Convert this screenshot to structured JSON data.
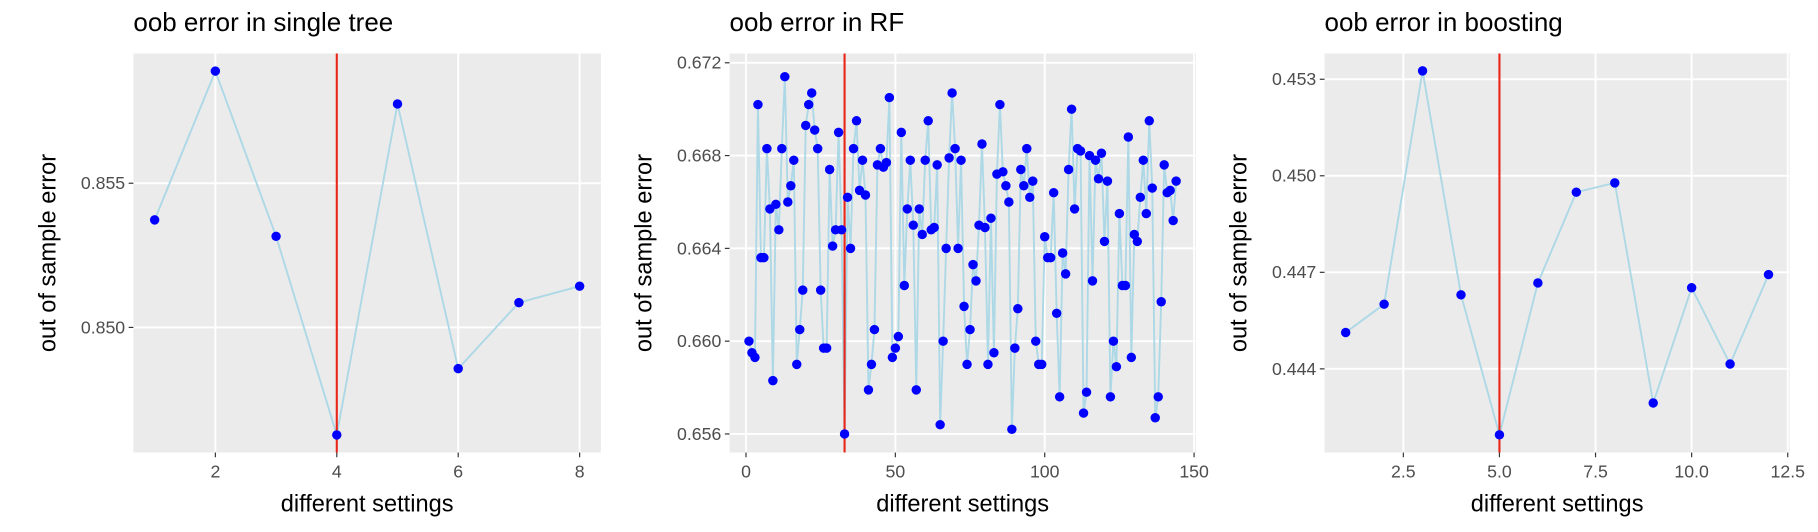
{
  "chart_data": [
    {
      "type": "line",
      "title": "oob error in single tree",
      "xlabel": "different settings",
      "ylabel": "out of sample error",
      "x": [
        1,
        2,
        3,
        4,
        5,
        6,
        7,
        8
      ],
      "values": [
        0.85373,
        0.85889,
        0.85316,
        0.84627,
        0.85775,
        0.84857,
        0.85086,
        0.85143
      ],
      "color": "#0000ff",
      "line_color": "#add8e6",
      "vline": 4,
      "vline_color": "#e8271b",
      "xlim": [
        0.65,
        8.35
      ],
      "ylim": [
        0.84566,
        0.8595
      ],
      "xticks": [
        2,
        4,
        6,
        8
      ],
      "yticks": [
        {
          "value": 0.85,
          "label": "0.850"
        },
        {
          "value": 0.855,
          "label": "0.855"
        }
      ],
      "grid": true
    },
    {
      "type": "line",
      "title": "oob error in RF",
      "xlabel": "different settings",
      "ylabel": "out of sample error",
      "x": [
        1,
        2,
        3,
        4,
        5,
        6,
        7,
        8,
        9,
        10,
        11,
        12,
        13,
        14,
        15,
        16,
        17,
        18,
        19,
        20,
        21,
        22,
        23,
        24,
        25,
        26,
        27,
        28,
        29,
        30,
        31,
        32,
        33,
        34,
        35,
        36,
        37,
        38,
        39,
        40,
        41,
        42,
        43,
        44,
        45,
        46,
        47,
        48,
        49,
        50,
        51,
        52,
        53,
        54,
        55,
        56,
        57,
        58,
        59,
        60,
        61,
        62,
        63,
        64,
        65,
        66,
        67,
        68,
        69,
        70,
        71,
        72,
        73,
        74,
        75,
        76,
        77,
        78,
        79,
        80,
        81,
        82,
        83,
        84,
        85,
        86,
        87,
        88,
        89,
        90,
        91,
        92,
        93,
        94,
        95,
        96,
        97,
        98,
        99,
        100,
        101,
        102,
        103,
        104,
        105,
        106,
        107,
        108,
        109,
        110,
        111,
        112,
        113,
        114,
        115,
        116,
        117,
        118,
        119,
        120,
        121,
        122,
        123,
        124,
        125,
        126,
        127,
        128,
        129,
        130,
        131,
        132,
        133,
        134,
        135,
        136,
        137,
        138,
        139,
        140,
        141,
        142,
        143,
        144
      ],
      "values": [
        0.66,
        0.6595,
        0.6593,
        0.6702,
        0.6636,
        0.6636,
        0.6683,
        0.6657,
        0.6583,
        0.6659,
        0.6648,
        0.6683,
        0.6714,
        0.666,
        0.6667,
        0.6678,
        0.659,
        0.6605,
        0.6622,
        0.6693,
        0.6702,
        0.6707,
        0.6691,
        0.6683,
        0.6622,
        0.6597,
        0.6597,
        0.6674,
        0.6641,
        0.6648,
        0.669,
        0.6648,
        0.656,
        0.6662,
        0.664,
        0.6683,
        0.6695,
        0.6665,
        0.6678,
        0.6663,
        0.6579,
        0.659,
        0.6605,
        0.6676,
        0.6683,
        0.6675,
        0.6677,
        0.6705,
        0.6593,
        0.6597,
        0.6602,
        0.669,
        0.6624,
        0.6657,
        0.6678,
        0.665,
        0.6579,
        0.6657,
        0.6646,
        0.6678,
        0.6695,
        0.6648,
        0.6649,
        0.6676,
        0.6564,
        0.66,
        0.664,
        0.6679,
        0.6707,
        0.6683,
        0.664,
        0.6678,
        0.6615,
        0.659,
        0.6605,
        0.6633,
        0.6626,
        0.665,
        0.6685,
        0.6649,
        0.659,
        0.6653,
        0.6595,
        0.6672,
        0.6702,
        0.6673,
        0.6667,
        0.666,
        0.6562,
        0.6597,
        0.6614,
        0.6674,
        0.6667,
        0.6683,
        0.6662,
        0.6669,
        0.66,
        0.659,
        0.659,
        0.6645,
        0.6636,
        0.6636,
        0.6664,
        0.6612,
        0.6576,
        0.6638,
        0.6629,
        0.6674,
        0.67,
        0.6657,
        0.6683,
        0.6682,
        0.6569,
        0.6578,
        0.668,
        0.6626,
        0.6678,
        0.667,
        0.6681,
        0.6643,
        0.6669,
        0.6576,
        0.66,
        0.6589,
        0.6655,
        0.6624,
        0.6624,
        0.6688,
        0.6593,
        0.6646,
        0.6643,
        0.6662,
        0.6678,
        0.6655,
        0.6695,
        0.6666,
        0.6567,
        0.6576,
        0.6617,
        0.6676,
        0.6664,
        0.6665,
        0.6652,
        0.6669
      ],
      "color": "#0000ff",
      "line_color": "#add8e6",
      "vline": 33,
      "vline_color": "#e8271b",
      "xlim": [
        -5.5,
        150.6
      ],
      "ylim": [
        0.6552,
        0.6724
      ],
      "xticks": [
        0,
        50,
        100,
        150
      ],
      "yticks": [
        {
          "value": 0.656,
          "label": "0.656"
        },
        {
          "value": 0.66,
          "label": "0.660"
        },
        {
          "value": 0.664,
          "label": "0.664"
        },
        {
          "value": 0.668,
          "label": "0.668"
        },
        {
          "value": 0.672,
          "label": "0.672"
        }
      ],
      "grid": true
    },
    {
      "type": "line",
      "title": "oob error in boosting",
      "xlabel": "different settings",
      "ylabel": "out of sample error",
      "x": [
        1,
        2,
        3,
        4,
        5,
        6,
        7,
        8,
        9,
        10,
        11,
        12
      ],
      "values": [
        0.44513,
        0.44601,
        0.45326,
        0.4463,
        0.44195,
        0.44667,
        0.44949,
        0.44978,
        0.44294,
        0.44652,
        0.44415,
        0.44693
      ],
      "color": "#0000ff",
      "line_color": "#add8e6",
      "vline": 5,
      "vline_color": "#e8271b",
      "xlim": [
        0.45,
        12.55
      ],
      "ylim": [
        0.4414,
        0.4538
      ],
      "xticks": [
        2.5,
        {
          "value": 5,
          "label": "5.0"
        },
        7.5,
        {
          "value": 10,
          "label": "10.0"
        },
        12.5
      ],
      "yticks": [
        {
          "value": 0.444,
          "label": "0.444"
        },
        {
          "value": 0.447,
          "label": "0.447"
        },
        {
          "value": 0.45,
          "label": "0.450"
        },
        {
          "value": 0.453,
          "label": "0.453"
        }
      ],
      "grid": true
    }
  ]
}
